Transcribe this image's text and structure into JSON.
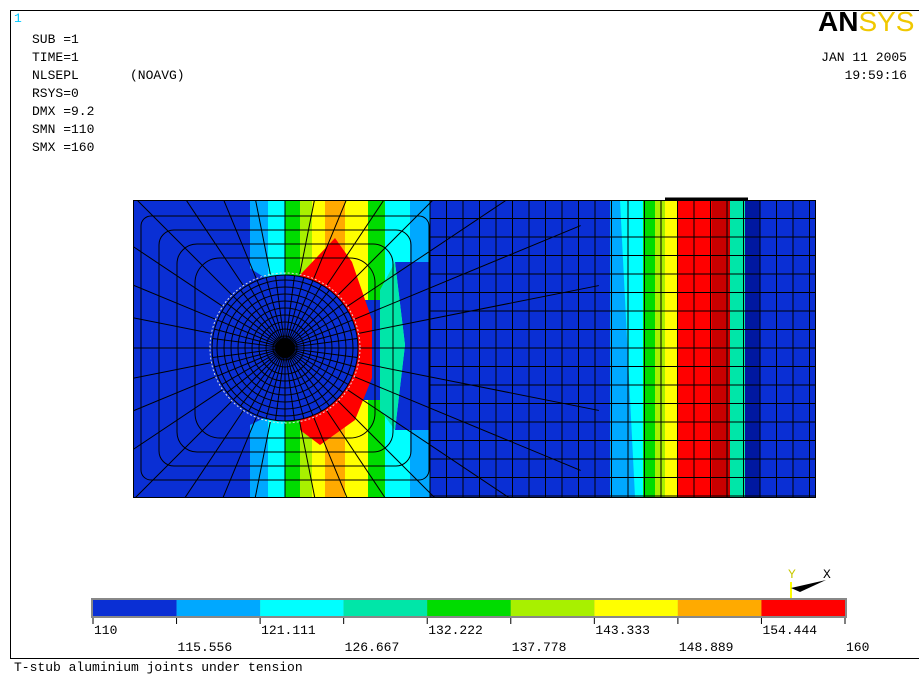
{
  "window_number": "1",
  "info": {
    "lines": [
      "SUB =1",
      "TIME=1",
      "NLSEPL",
      "RSYS=0",
      "DMX =9.2",
      "SMN =110",
      "SMX =160"
    ],
    "avg_mode": "(NOAVG)"
  },
  "logo": {
    "an": "AN",
    "sys": "SYS"
  },
  "date": "JAN 11 2005",
  "time": "19:59:16",
  "legend": {
    "colors": [
      "#0a2fd4",
      "#00a8ff",
      "#00ffff",
      "#00e6a8",
      "#00dc00",
      "#a8f000",
      "#ffff00",
      "#ffaa00",
      "#ff0000"
    ],
    "labels": [
      "110",
      "115.556",
      "121.111",
      "126.667",
      "132.222",
      "137.778",
      "143.333",
      "148.889",
      "154.444",
      "160"
    ]
  },
  "triad": {
    "y": "Y",
    "x": "X"
  },
  "caption": "T-stub aluminium joints under tension"
}
